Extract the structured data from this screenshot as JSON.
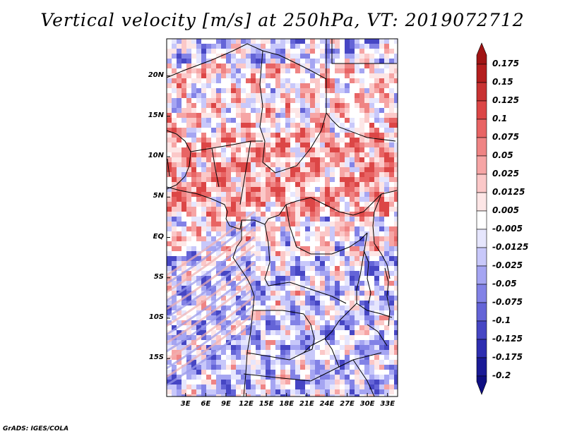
{
  "title": "Vertical velocity [m/s] at 250hPa, VT: 2019072712",
  "credit": "GrADS: IGES/COLA",
  "lat_labels": [
    "20N",
    "15N",
    "10N",
    "5N",
    "EQ",
    "5S",
    "10S",
    "15S"
  ],
  "lat_values": [
    20,
    15,
    10,
    5,
    0,
    -5,
    -10,
    -15
  ],
  "lon_labels": [
    "3E",
    "6E",
    "9E",
    "12E",
    "15E",
    "18E",
    "21E",
    "24E",
    "27E",
    "30E",
    "33E"
  ],
  "lon_values": [
    3,
    6,
    9,
    12,
    15,
    18,
    21,
    24,
    27,
    30,
    33
  ],
  "extent": {
    "lon_min": 0.2,
    "lon_max": 34.5,
    "lat_min": -19.7,
    "lat_max": 24.6
  },
  "colorbar": {
    "labels": [
      "0.175",
      "0.15",
      "0.125",
      "0.1",
      "0.075",
      "0.05",
      "0.025",
      "0.0125",
      "0.005",
      "-0.005",
      "-0.0125",
      "-0.025",
      "-0.05",
      "-0.075",
      "-0.1",
      "-0.125",
      "-0.175",
      "-0.2"
    ],
    "colors": [
      "#a01414",
      "#b41e1e",
      "#c83232",
      "#dc4646",
      "#e86464",
      "#ef8484",
      "#f6a5a5",
      "#fbc8c8",
      "#fde6e6",
      "#ffffff",
      "#e6e6fd",
      "#c8c8fa",
      "#a5a5f2",
      "#8282e6",
      "#6464d7",
      "#4646c4",
      "#2d2db0",
      "#1a1a96",
      "#0f0f82"
    ]
  }
}
